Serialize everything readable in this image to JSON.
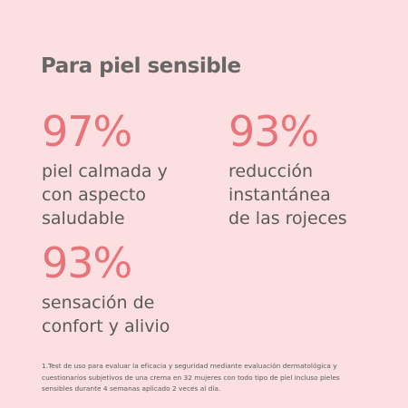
{
  "header": {
    "title": "Para piel sensible"
  },
  "stats": [
    {
      "value": "97%",
      "lines": [
        "piel calmada y",
        "con aspecto",
        "saludable"
      ]
    },
    {
      "value": "93%",
      "lines": [
        "reducción",
        "instantánea",
        "de las rojeces"
      ]
    },
    {
      "value": "93%",
      "lines": [
        "sensación de",
        "confort y alivio"
      ]
    }
  ],
  "footnote": {
    "lines": [
      "1.Test de uso para evaluar la eficacia y seguridad mediante evaluación dermatológica y",
      "cuestionarios subjetivos de una crema en 32 mujeres con todo tipo de piel incluso pieles",
      "sensibles durante 4 semanas aplicado 2 veces al día."
    ]
  }
}
